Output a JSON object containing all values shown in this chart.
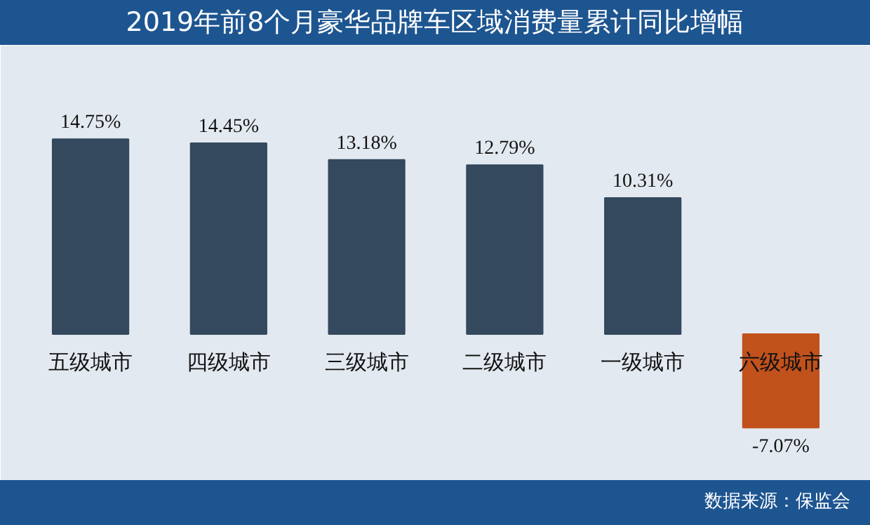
{
  "chart_data": {
    "type": "bar",
    "title": "2019年前8个月豪华品牌车区域消费量累计同比增幅",
    "categories": [
      "五级城市",
      "四级城市",
      "三级城市",
      "二级城市",
      "一级城市",
      "六级城市"
    ],
    "values": [
      14.75,
      14.45,
      13.18,
      12.79,
      10.31,
      -7.07
    ],
    "value_labels": [
      "14.75%",
      "14.45%",
      "13.18%",
      "12.79%",
      "10.31%",
      "-7.07%"
    ],
    "colors": [
      "#34495e",
      "#34495e",
      "#34495e",
      "#34495e",
      "#34495e",
      "#c1521c"
    ],
    "grid": false,
    "annotations": [
      "数据来源：保监会"
    ]
  }
}
